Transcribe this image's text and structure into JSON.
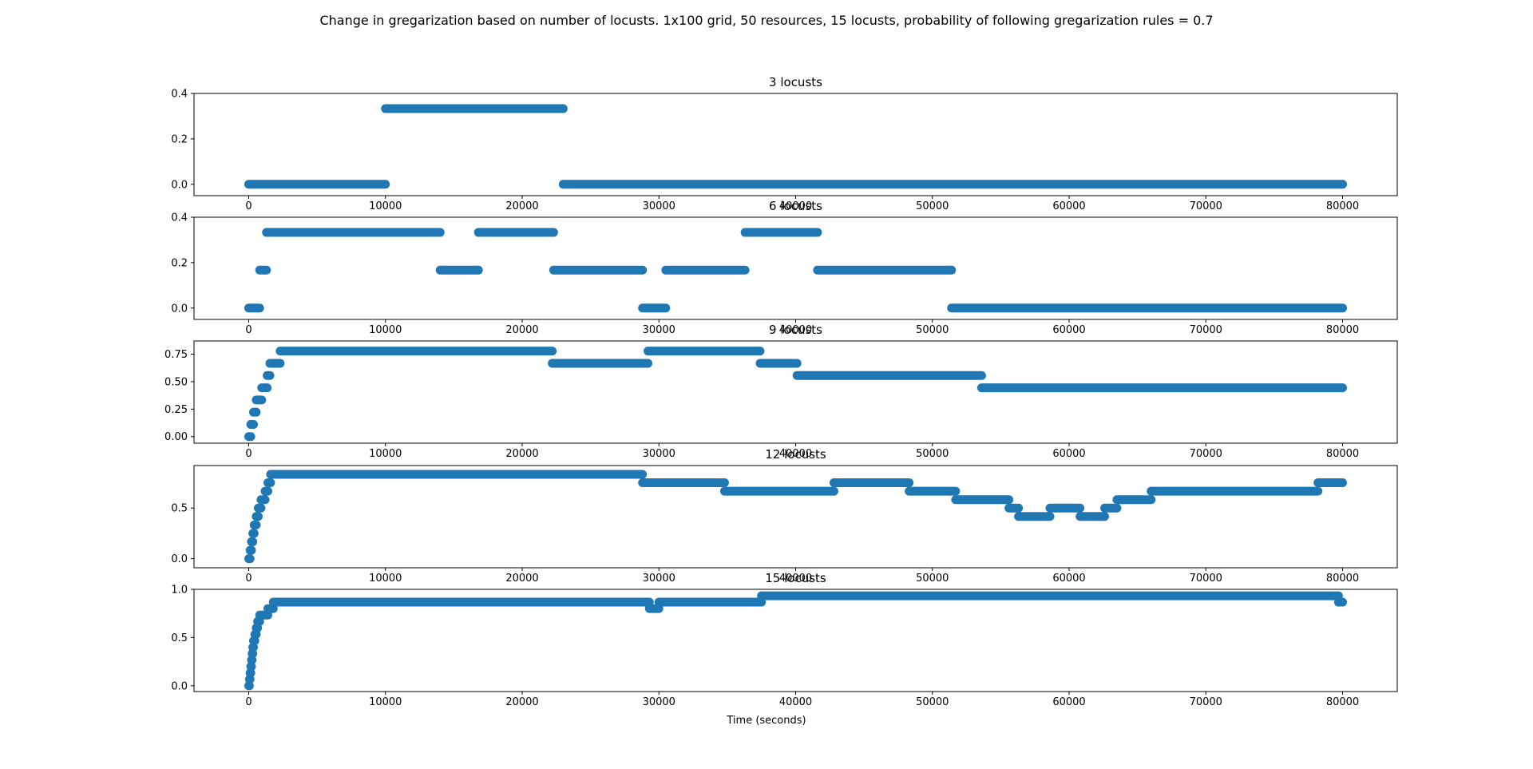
{
  "figure": {
    "suptitle": "Change in gregarization based on number of locusts. 1x100 grid, 50 resources, 15 locusts, probability of following gregarization rules = 0.7",
    "xlabel": "Time (seconds)",
    "marker_color": "#1f77b4"
  },
  "chart_data": [
    {
      "type": "scatter",
      "title": "3 locusts",
      "xlim": [
        -4000,
        84000
      ],
      "ylim": [
        -0.05,
        0.4
      ],
      "xticks": [
        0,
        10000,
        20000,
        30000,
        40000,
        50000,
        60000,
        70000,
        80000
      ],
      "yticks": [
        0.0,
        0.2,
        0.4
      ],
      "ytick_labels": [
        "0.0",
        "0.2",
        "0.4"
      ],
      "segments": [
        {
          "x0": 0,
          "x1": 10000,
          "y": 0.0
        },
        {
          "x0": 10000,
          "x1": 23000,
          "y": 0.333
        },
        {
          "x0": 23000,
          "x1": 80000,
          "y": 0.0
        }
      ]
    },
    {
      "type": "scatter",
      "title": "6 locusts",
      "xlim": [
        -4000,
        84000
      ],
      "ylim": [
        -0.05,
        0.4
      ],
      "xticks": [
        0,
        10000,
        20000,
        30000,
        40000,
        50000,
        60000,
        70000,
        80000
      ],
      "yticks": [
        0.0,
        0.2,
        0.4
      ],
      "ytick_labels": [
        "0.0",
        "0.2",
        "0.4"
      ],
      "segments": [
        {
          "x0": 0,
          "x1": 800,
          "y": 0.0
        },
        {
          "x0": 800,
          "x1": 1300,
          "y": 0.167
        },
        {
          "x0": 1300,
          "x1": 14000,
          "y": 0.333
        },
        {
          "x0": 14000,
          "x1": 16800,
          "y": 0.167
        },
        {
          "x0": 16800,
          "x1": 22300,
          "y": 0.333
        },
        {
          "x0": 22300,
          "x1": 28800,
          "y": 0.167
        },
        {
          "x0": 28800,
          "x1": 30500,
          "y": 0.0
        },
        {
          "x0": 30500,
          "x1": 36300,
          "y": 0.167
        },
        {
          "x0": 36300,
          "x1": 41600,
          "y": 0.333
        },
        {
          "x0": 41600,
          "x1": 51400,
          "y": 0.167
        },
        {
          "x0": 51400,
          "x1": 80000,
          "y": 0.0
        }
      ]
    },
    {
      "type": "scatter",
      "title": "9 locusts",
      "xlim": [
        -4000,
        84000
      ],
      "ylim": [
        -0.06,
        0.87
      ],
      "xticks": [
        0,
        10000,
        20000,
        30000,
        40000,
        50000,
        60000,
        70000,
        80000
      ],
      "yticks": [
        0.0,
        0.25,
        0.5,
        0.75
      ],
      "ytick_labels": [
        "0.00",
        "0.25",
        "0.50",
        "0.75"
      ],
      "segments": [
        {
          "x0": 0,
          "x1": 150,
          "y": 0.0
        },
        {
          "x0": 150,
          "x1": 350,
          "y": 0.111
        },
        {
          "x0": 350,
          "x1": 550,
          "y": 0.222
        },
        {
          "x0": 550,
          "x1": 950,
          "y": 0.333
        },
        {
          "x0": 950,
          "x1": 1350,
          "y": 0.444
        },
        {
          "x0": 1350,
          "x1": 1550,
          "y": 0.556
        },
        {
          "x0": 1550,
          "x1": 2300,
          "y": 0.667
        },
        {
          "x0": 2300,
          "x1": 22200,
          "y": 0.778
        },
        {
          "x0": 22200,
          "x1": 29200,
          "y": 0.667
        },
        {
          "x0": 29200,
          "x1": 37400,
          "y": 0.778
        },
        {
          "x0": 37400,
          "x1": 40100,
          "y": 0.667
        },
        {
          "x0": 40100,
          "x1": 53600,
          "y": 0.556
        },
        {
          "x0": 53600,
          "x1": 80000,
          "y": 0.444
        }
      ]
    },
    {
      "type": "scatter",
      "title": "12 locusts",
      "xlim": [
        -4000,
        84000
      ],
      "ylim": [
        -0.09,
        0.92
      ],
      "xticks": [
        0,
        10000,
        20000,
        30000,
        40000,
        50000,
        60000,
        70000,
        80000
      ],
      "yticks": [
        0.0,
        0.5
      ],
      "ytick_labels": [
        "0.0",
        "0.5"
      ],
      "segments": [
        {
          "x0": 0,
          "x1": 100,
          "y": 0.0
        },
        {
          "x0": 100,
          "x1": 200,
          "y": 0.083
        },
        {
          "x0": 200,
          "x1": 300,
          "y": 0.167
        },
        {
          "x0": 300,
          "x1": 400,
          "y": 0.25
        },
        {
          "x0": 400,
          "x1": 550,
          "y": 0.333
        },
        {
          "x0": 550,
          "x1": 700,
          "y": 0.417
        },
        {
          "x0": 700,
          "x1": 900,
          "y": 0.5
        },
        {
          "x0": 900,
          "x1": 1200,
          "y": 0.583
        },
        {
          "x0": 1200,
          "x1": 1400,
          "y": 0.667
        },
        {
          "x0": 1400,
          "x1": 1600,
          "y": 0.75
        },
        {
          "x0": 1600,
          "x1": 28800,
          "y": 0.833
        },
        {
          "x0": 28800,
          "x1": 34800,
          "y": 0.75
        },
        {
          "x0": 34800,
          "x1": 42800,
          "y": 0.667
        },
        {
          "x0": 42800,
          "x1": 48300,
          "y": 0.75
        },
        {
          "x0": 48300,
          "x1": 51700,
          "y": 0.667
        },
        {
          "x0": 51700,
          "x1": 55600,
          "y": 0.583
        },
        {
          "x0": 55600,
          "x1": 56300,
          "y": 0.5
        },
        {
          "x0": 56300,
          "x1": 58600,
          "y": 0.417
        },
        {
          "x0": 58600,
          "x1": 60800,
          "y": 0.5
        },
        {
          "x0": 60800,
          "x1": 62600,
          "y": 0.417
        },
        {
          "x0": 62600,
          "x1": 63500,
          "y": 0.5
        },
        {
          "x0": 63500,
          "x1": 66000,
          "y": 0.583
        },
        {
          "x0": 66000,
          "x1": 78200,
          "y": 0.667
        },
        {
          "x0": 78200,
          "x1": 80000,
          "y": 0.75
        }
      ]
    },
    {
      "type": "scatter",
      "title": "15 locusts",
      "xlim": [
        -4000,
        84000
      ],
      "ylim": [
        -0.06,
        1.0
      ],
      "xticks": [
        0,
        10000,
        20000,
        30000,
        40000,
        50000,
        60000,
        70000,
        80000
      ],
      "yticks": [
        0.0,
        0.5,
        1.0
      ],
      "ytick_labels": [
        "0.0",
        "0.5",
        "1.0"
      ],
      "segments": [
        {
          "x0": 0,
          "x1": 50,
          "y": 0.0
        },
        {
          "x0": 50,
          "x1": 100,
          "y": 0.067
        },
        {
          "x0": 100,
          "x1": 150,
          "y": 0.133
        },
        {
          "x0": 150,
          "x1": 200,
          "y": 0.2
        },
        {
          "x0": 200,
          "x1": 250,
          "y": 0.267
        },
        {
          "x0": 250,
          "x1": 300,
          "y": 0.333
        },
        {
          "x0": 300,
          "x1": 350,
          "y": 0.4
        },
        {
          "x0": 350,
          "x1": 450,
          "y": 0.467
        },
        {
          "x0": 450,
          "x1": 550,
          "y": 0.533
        },
        {
          "x0": 550,
          "x1": 650,
          "y": 0.6
        },
        {
          "x0": 650,
          "x1": 800,
          "y": 0.667
        },
        {
          "x0": 800,
          "x1": 1400,
          "y": 0.733
        },
        {
          "x0": 1400,
          "x1": 1800,
          "y": 0.8
        },
        {
          "x0": 1800,
          "x1": 29300,
          "y": 0.867
        },
        {
          "x0": 29300,
          "x1": 30000,
          "y": 0.8
        },
        {
          "x0": 30000,
          "x1": 37500,
          "y": 0.867
        },
        {
          "x0": 37500,
          "x1": 79700,
          "y": 0.933
        },
        {
          "x0": 79700,
          "x1": 80000,
          "y": 0.867
        }
      ]
    }
  ]
}
